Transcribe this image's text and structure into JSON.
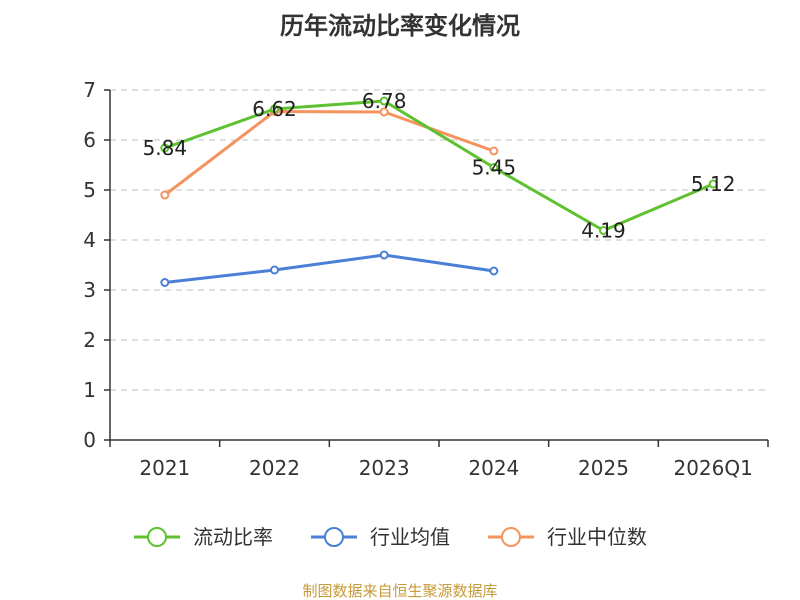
{
  "chart_data": {
    "type": "line",
    "title": "历年流动比率变化情况",
    "categories": [
      "2021",
      "2022",
      "2023",
      "2024",
      "2025",
      "2026Q1"
    ],
    "ylim": [
      0,
      7
    ],
    "yticks": [
      "0",
      "1",
      "2",
      "3",
      "4",
      "5",
      "6",
      "7"
    ],
    "grid": true,
    "legend_position": "bottom",
    "series": [
      {
        "name": "流动比率",
        "color": "#5ec12f",
        "values": [
          5.84,
          6.62,
          6.78,
          5.45,
          4.19,
          5.12
        ],
        "labels": [
          "5.84",
          "6.62",
          "6.78",
          "5.45",
          "4.19",
          "5.12"
        ]
      },
      {
        "name": "行业均值",
        "color": "#4a7fd8",
        "values": [
          3.15,
          3.4,
          3.7,
          3.38,
          null,
          null
        ]
      },
      {
        "name": "行业中位数",
        "color": "#f5935e",
        "values": [
          4.9,
          6.57,
          6.56,
          5.78,
          null,
          null
        ]
      }
    ]
  },
  "source": {
    "text": "制图数据来自恒生聚源数据库",
    "color": "#c79a3a"
  }
}
